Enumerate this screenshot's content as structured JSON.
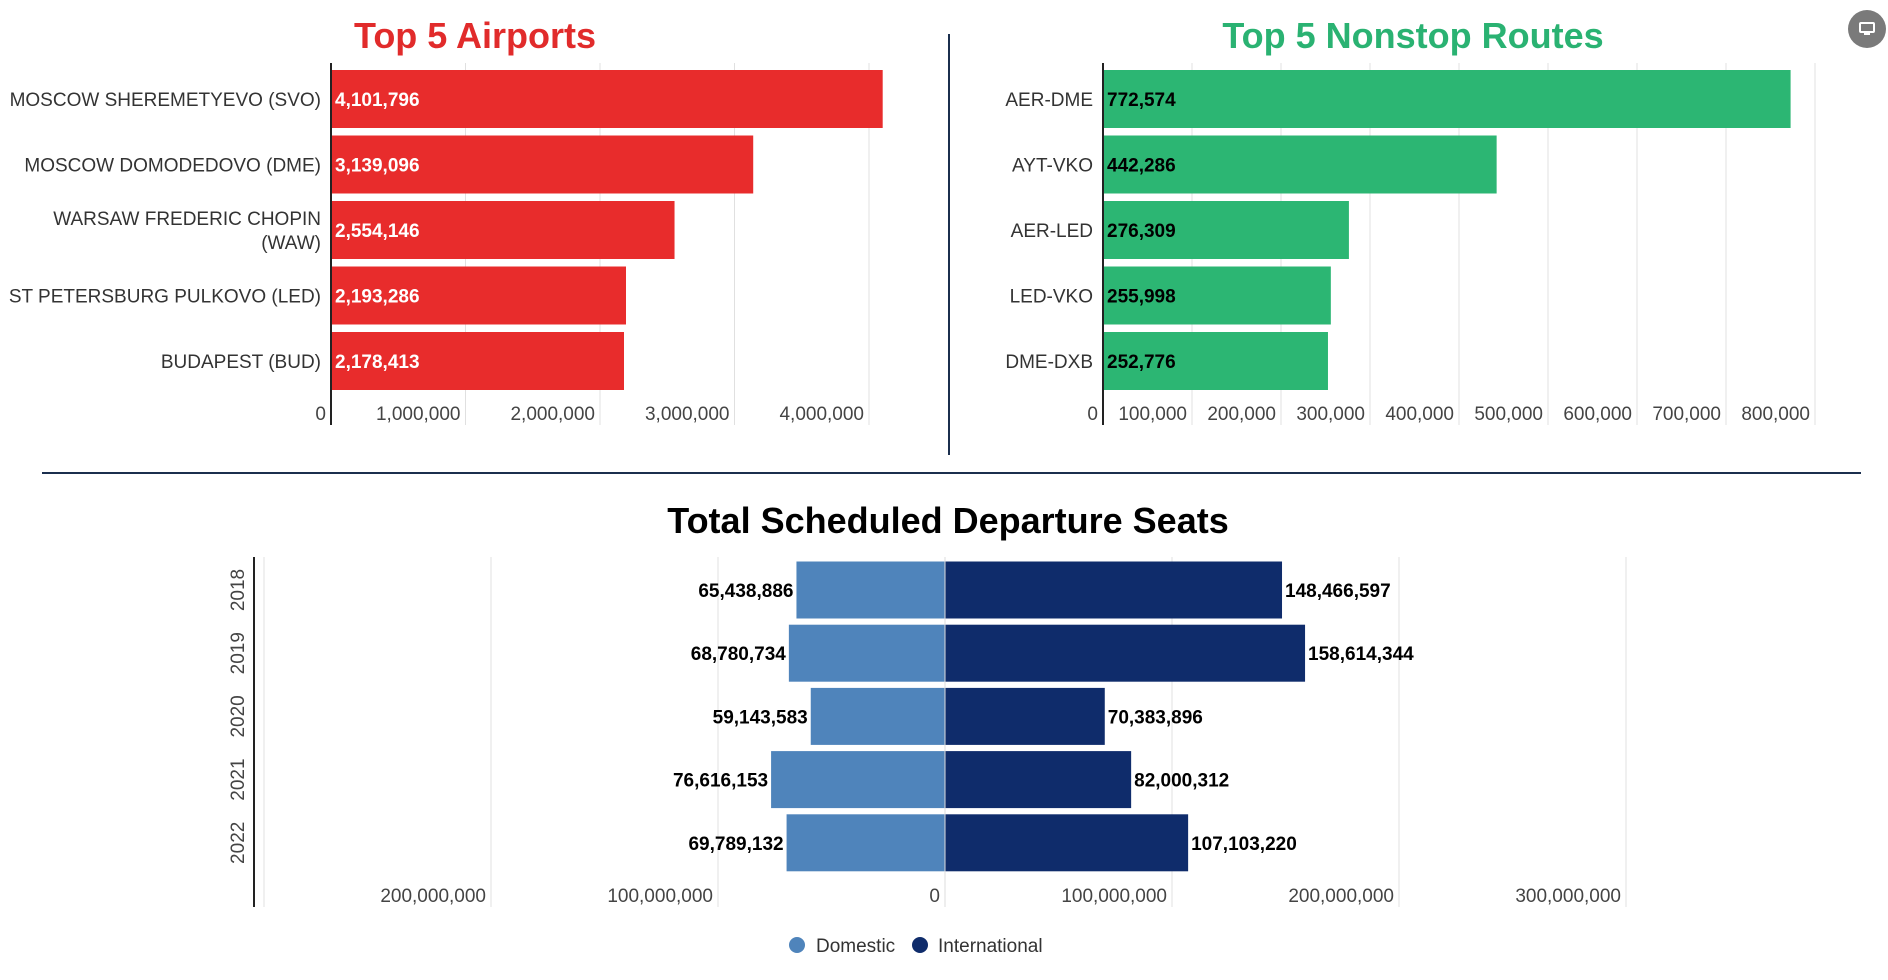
{
  "colors": {
    "airports_title": "#e12b2b",
    "airports_bar": "#e82c2c",
    "routes_title": "#2ab272",
    "routes_bar": "#2cb673",
    "domestic": "#4f84bb",
    "international": "#0f2c6b",
    "divider": "#1b2f4e"
  },
  "present_button": {
    "icon": "monitor-icon"
  },
  "chart_data": [
    {
      "type": "bar",
      "orientation": "horizontal",
      "title": "Top 5 Airports",
      "categories": [
        "MOSCOW SHEREMETYEVO (SVO)",
        "MOSCOW DOMODEDOVO (DME)",
        "WARSAW FREDERIC CHOPIN (WAW)",
        "ST PETERSBURG PULKOVO (LED)",
        "BUDAPEST (BUD)"
      ],
      "category_lines": [
        [
          "MOSCOW SHEREMETYEVO (SVO)"
        ],
        [
          "MOSCOW DOMODEDOVO (DME)"
        ],
        [
          "WARSAW FREDERIC CHOPIN",
          "(WAW)"
        ],
        [
          "ST PETERSBURG PULKOVO (LED)"
        ],
        [
          "BUDAPEST (BUD)"
        ]
      ],
      "values": [
        4101796,
        3139096,
        2554146,
        2193286,
        2178413
      ],
      "value_labels": [
        "4,101,796",
        "3,139,096",
        "2,554,146",
        "2,193,286",
        "2,178,413"
      ],
      "xticks": [
        0,
        1000000,
        2000000,
        3000000,
        4000000
      ],
      "xtick_labels": [
        "0",
        "1,000,000",
        "2,000,000",
        "3,000,000",
        "4,000,000"
      ],
      "xlim": [
        0,
        4200000
      ],
      "grid": true,
      "xlabel": "",
      "ylabel": ""
    },
    {
      "type": "bar",
      "orientation": "horizontal",
      "title": "Top 5 Nonstop Routes",
      "categories": [
        "AER-DME",
        "AYT-VKO",
        "AER-LED",
        "LED-VKO",
        "DME-DXB"
      ],
      "category_lines": [
        [
          "AER-DME"
        ],
        [
          "AYT-VKO"
        ],
        [
          "AER-LED"
        ],
        [
          "LED-VKO"
        ],
        [
          "DME-DXB"
        ]
      ],
      "values": [
        772574,
        442286,
        276309,
        255998,
        252776
      ],
      "value_labels": [
        "772,574",
        "442,286",
        "276,309",
        "255,998",
        "252,776"
      ],
      "xticks": [
        0,
        100000,
        200000,
        300000,
        400000,
        500000,
        600000,
        700000,
        800000
      ],
      "xtick_labels": [
        "0",
        "100,000",
        "200,000",
        "300,000",
        "400,000",
        "500,000",
        "600,000",
        "700,000",
        "800,000"
      ],
      "xlim": [
        0,
        800000
      ],
      "grid": true,
      "xlabel": "",
      "ylabel": ""
    },
    {
      "type": "bar",
      "orientation": "horizontal-diverging",
      "title": "Total Scheduled Departure Seats",
      "categories": [
        "2018",
        "2019",
        "2020",
        "2021",
        "2022"
      ],
      "series": [
        {
          "name": "Domestic",
          "side": "left",
          "values": [
            65438886,
            68780734,
            59143583,
            76616153,
            69789132
          ],
          "value_labels": [
            "65,438,886",
            "68,780,734",
            "59,143,583",
            "76,616,153",
            "69,789,132"
          ]
        },
        {
          "name": "International",
          "side": "right",
          "values": [
            148466597,
            158614344,
            70383896,
            82000312,
            107103220
          ],
          "value_labels": [
            "148,466,597",
            "158,614,344",
            "70,383,896",
            "82,000,312",
            "107,103,220"
          ]
        }
      ],
      "xticks": [
        -300000000,
        -200000000,
        -100000000,
        0,
        100000000,
        200000000,
        300000000
      ],
      "xtick_labels": [
        "",
        "200,000,000",
        "100,000,000",
        "0",
        "100,000,000",
        "200,000,000",
        "300,000,000"
      ],
      "xlim": [
        -300000000,
        300000000
      ],
      "grid": true,
      "legend": {
        "position": "bottom-center",
        "items": [
          "Domestic",
          "International"
        ]
      },
      "xlabel": "",
      "ylabel": ""
    }
  ]
}
